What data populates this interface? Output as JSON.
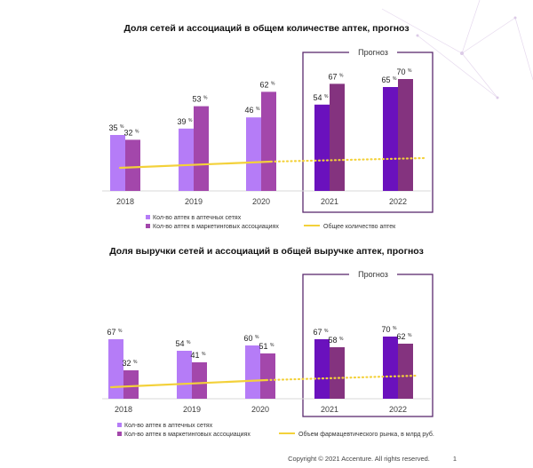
{
  "colors": {
    "chains": "#b57cf7",
    "chains_forecast": "#6a11bd",
    "associations": "#a347ab",
    "associations_forecast": "#84337f",
    "trend": "#f3d13a",
    "forecast_box": "#5a2a6e",
    "grid": "#d9d9d9",
    "axis_text": "#3c3c3c"
  },
  "footer": {
    "copyright": "Copyright © 2021 Accenture. All rights reserved.",
    "page": "1"
  },
  "chart_data": [
    {
      "type": "bar",
      "title": "Доля сетей и ассоциаций в общем количестве аптек, прогноз",
      "categories": [
        "2018",
        "2019",
        "2020",
        "2021",
        "2022"
      ],
      "forecast_label": "Прогноз",
      "forecast_categories": [
        "2021",
        "2022"
      ],
      "value_unit": "%",
      "ylim": [
        0,
        100
      ],
      "series": [
        {
          "name": "Кол-во аптек в аптечных сетях",
          "values": [
            35,
            39,
            46,
            54,
            65
          ]
        },
        {
          "name": "Кол-во аптек в маркетинговых ассоциациях",
          "values": [
            32,
            53,
            62,
            67,
            70
          ]
        }
      ],
      "trend": {
        "name": "Общее количество аптек",
        "style": "solid then dotted in forecast"
      },
      "legend_position": "bottom"
    },
    {
      "type": "bar",
      "title": "Доля выручки сетей и ассоциаций в общей выручке аптек, прогноз",
      "categories": [
        "2018",
        "2019",
        "2020",
        "2021",
        "2022"
      ],
      "forecast_label": "Прогноз",
      "forecast_categories": [
        "2021",
        "2022"
      ],
      "value_unit": "%",
      "ylim": [
        0,
        100
      ],
      "series": [
        {
          "name": "Кол-во аптек в аптечных сетях",
          "values": [
            67,
            54,
            60,
            67,
            70
          ]
        },
        {
          "name": "Кол-во аптек в маркетинговых ассоциациях",
          "values": [
            32,
            41,
            51,
            58,
            62
          ]
        }
      ],
      "trend": {
        "name": "Объем фармацевтического рынка, в млрд руб.",
        "style": "solid then dotted in forecast"
      },
      "legend_position": "bottom"
    }
  ]
}
